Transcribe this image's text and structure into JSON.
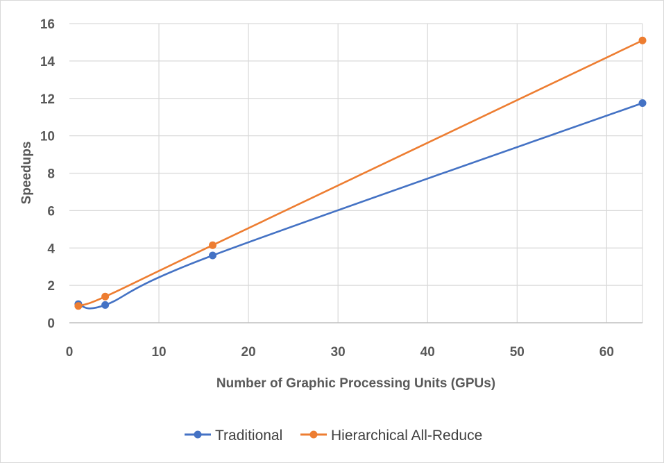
{
  "chart_data": {
    "type": "line",
    "title": "",
    "xlabel": "Number of Graphic Processing Units (GPUs)",
    "ylabel": "Speedups",
    "xlim": [
      0,
      64
    ],
    "ylim": [
      0,
      16
    ],
    "x_ticks": [
      0,
      10,
      20,
      30,
      40,
      50,
      60
    ],
    "y_ticks": [
      0,
      2,
      4,
      6,
      8,
      10,
      12,
      14,
      16
    ],
    "grid": true,
    "legend_position": "bottom",
    "smooth_lines": true,
    "series": [
      {
        "name": "Traditional",
        "color": "#4472C4",
        "x": [
          1,
          4,
          16,
          64
        ],
        "y": [
          1.0,
          0.95,
          3.6,
          11.75
        ]
      },
      {
        "name": "Hierarchical All-Reduce",
        "color": "#ED7D31",
        "x": [
          1,
          4,
          16,
          64
        ],
        "y": [
          0.9,
          1.4,
          4.15,
          15.1
        ]
      }
    ]
  }
}
